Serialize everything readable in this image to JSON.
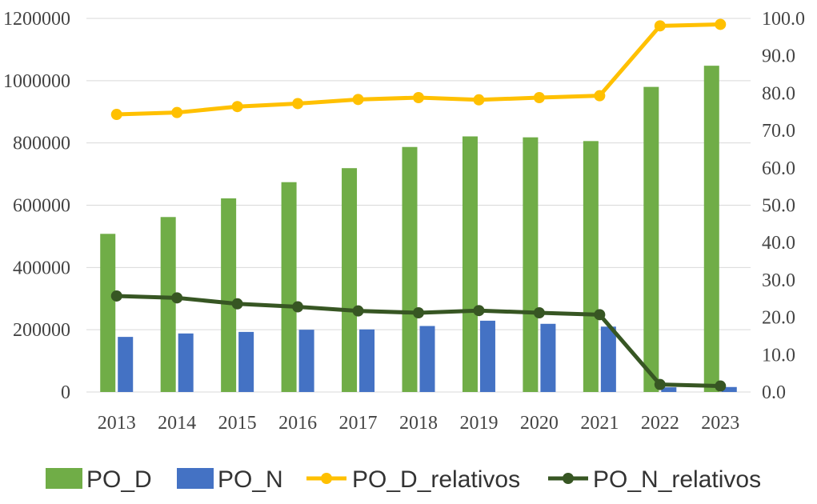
{
  "chart_data": {
    "type": "bar",
    "categories": [
      "2013",
      "2014",
      "2015",
      "2016",
      "2017",
      "2018",
      "2019",
      "2020",
      "2021",
      "2022",
      "2023"
    ],
    "series": [
      {
        "name": "PO_D",
        "kind": "bar",
        "axis": "left",
        "color": "#70AD47",
        "values": [
          508000,
          562000,
          622000,
          674000,
          719000,
          787000,
          821000,
          818000,
          806000,
          980000,
          1048000
        ]
      },
      {
        "name": "PO_N",
        "kind": "bar",
        "axis": "left",
        "color": "#4472C4",
        "values": [
          177000,
          188000,
          193000,
          200000,
          201000,
          212000,
          229000,
          219000,
          210000,
          15000,
          16000
        ]
      },
      {
        "name": "PO_D_relativos",
        "kind": "line",
        "axis": "right",
        "color": "#FFC000",
        "values": [
          74.3,
          74.8,
          76.4,
          77.2,
          78.3,
          78.8,
          78.2,
          78.8,
          79.3,
          98.0,
          98.4
        ]
      },
      {
        "name": "PO_N_relativos",
        "kind": "line",
        "axis": "right",
        "color": "#375623",
        "values": [
          25.7,
          25.2,
          23.6,
          22.8,
          21.7,
          21.2,
          21.8,
          21.2,
          20.7,
          2.0,
          1.6
        ]
      }
    ],
    "ylim_left": [
      0,
      1200000
    ],
    "yticks_left": [
      0,
      200000,
      400000,
      600000,
      800000,
      1000000,
      1200000
    ],
    "yticks_left_labels": [
      "0",
      "200000",
      "400000",
      "600000",
      "800000",
      "1000000",
      "1200000"
    ],
    "ylim_right": [
      0,
      100
    ],
    "yticks_right": [
      0,
      10,
      20,
      30,
      40,
      50,
      60,
      70,
      80,
      90,
      100
    ],
    "yticks_right_labels": [
      "0.0",
      "10.0",
      "20.0",
      "30.0",
      "40.0",
      "50.0",
      "60.0",
      "70.0",
      "80.0",
      "90.0",
      "100.0"
    ],
    "grid": true,
    "legend_position": "bottom",
    "title": "",
    "xlabel": "",
    "ylabel": ""
  }
}
